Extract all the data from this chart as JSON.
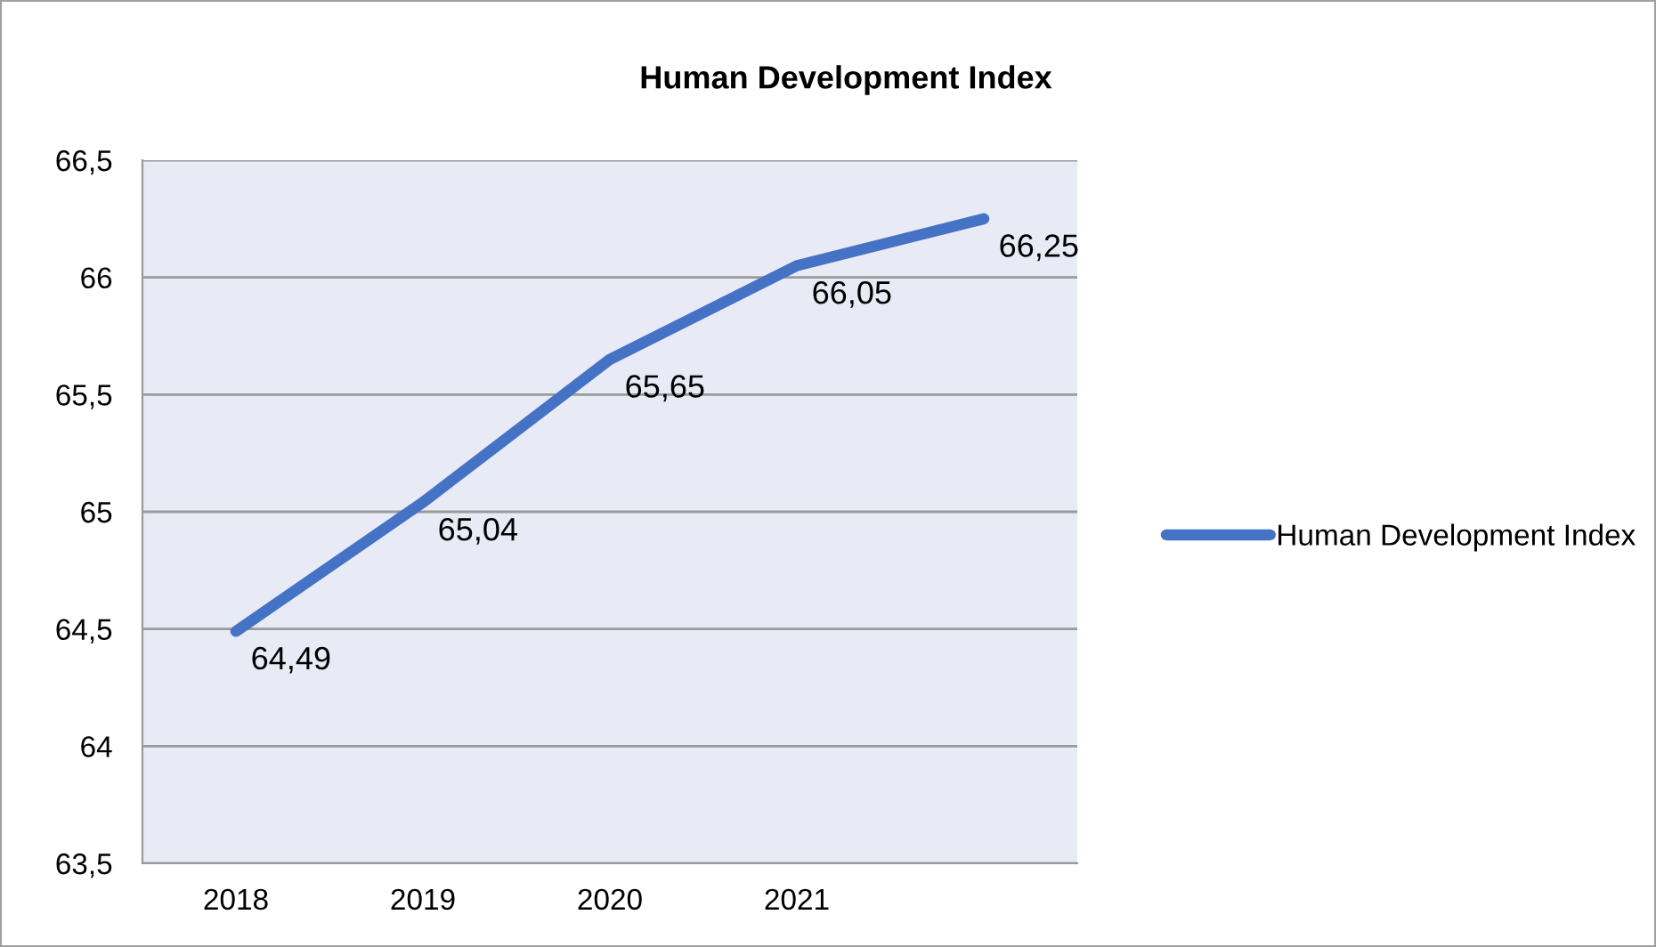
{
  "chart_data": {
    "type": "line",
    "title": "Human Development Index",
    "categories": [
      "2018",
      "2019",
      "2020",
      "2021",
      null
    ],
    "series": [
      {
        "name": "Human Development Index",
        "color": "#4472c4",
        "values": [
          64.49,
          65.04,
          65.65,
          66.05,
          66.25
        ],
        "value_labels": [
          "64,49",
          "65,04",
          "65,65",
          "66,05",
          "66,25"
        ]
      }
    ],
    "ylim": [
      63.5,
      66.5
    ],
    "yticks": [
      {
        "value": 63.5,
        "label": "63,5"
      },
      {
        "value": 64,
        "label": "64"
      },
      {
        "value": 64.5,
        "label": "64,5"
      },
      {
        "value": 65,
        "label": "65"
      },
      {
        "value": 65.5,
        "label": "65,5"
      },
      {
        "value": 66,
        "label": "66"
      },
      {
        "value": 66.5,
        "label": "66,5"
      }
    ],
    "grid": "y",
    "legend": "right",
    "marker": "none",
    "line_style": "solid"
  }
}
